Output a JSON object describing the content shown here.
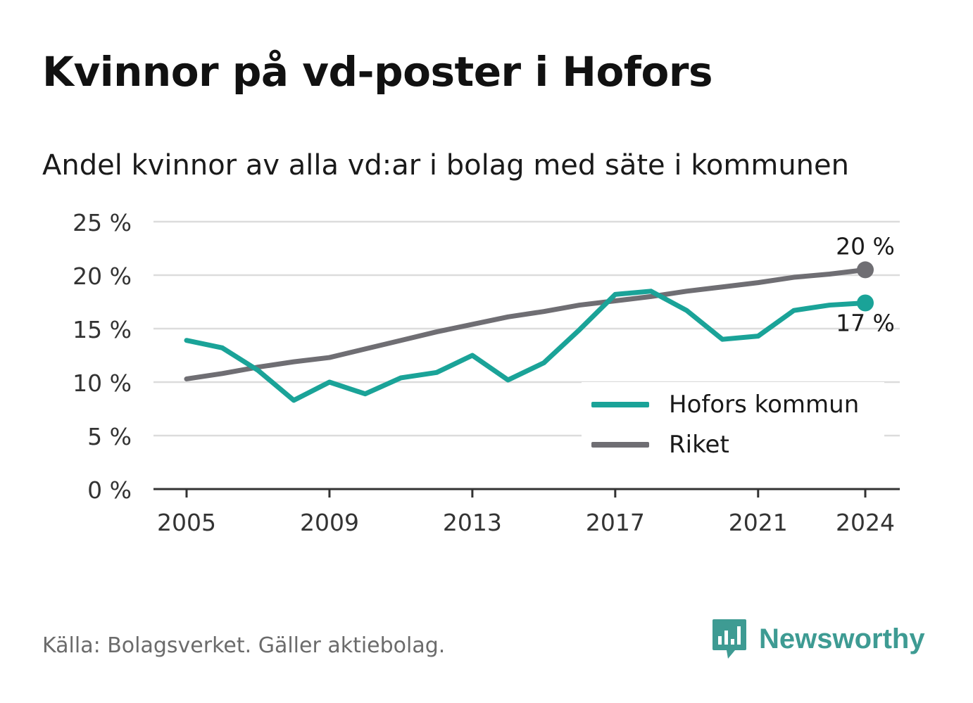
{
  "title": "Kvinnor på vd-poster i Hofors",
  "subtitle": "Andel kvinnor av alla vd:ar i bolag med säte i kommunen",
  "source": "Källa: Bolagsverket. Gäller aktiebolag.",
  "brand": {
    "name": "Newsworthy",
    "logo_icon": "newsworthy-chart-bubble-icon",
    "color": "#3e9b93"
  },
  "chart_data": {
    "type": "line",
    "x": [
      2005,
      2006,
      2007,
      2008,
      2009,
      2010,
      2011,
      2012,
      2013,
      2014,
      2015,
      2016,
      2017,
      2018,
      2019,
      2020,
      2021,
      2022,
      2023,
      2024
    ],
    "x_ticks": [
      "2005",
      "2009",
      "2013",
      "2017",
      "2021",
      "2024"
    ],
    "y_ticks": [
      "0 %",
      "5 %",
      "10 %",
      "15 %",
      "20 %",
      "25 %"
    ],
    "ylim": [
      0,
      25
    ],
    "grid": true,
    "legend_position": "bottom-right",
    "series": [
      {
        "name": "Hofors kommun",
        "color": "#1aa398",
        "values": [
          13.9,
          13.2,
          11.1,
          8.3,
          10.0,
          8.9,
          10.4,
          10.9,
          12.5,
          10.2,
          11.8,
          14.9,
          18.2,
          18.5,
          16.7,
          14.0,
          14.3,
          16.7,
          17.2,
          17.4
        ],
        "end_label": "17 %"
      },
      {
        "name": "Riket",
        "color": "#6f6e73",
        "values": [
          10.3,
          10.8,
          11.4,
          11.9,
          12.3,
          13.1,
          13.9,
          14.7,
          15.4,
          16.1,
          16.6,
          17.2,
          17.6,
          18.0,
          18.5,
          18.9,
          19.3,
          19.8,
          20.1,
          20.5
        ],
        "end_label": "20 %"
      }
    ]
  }
}
